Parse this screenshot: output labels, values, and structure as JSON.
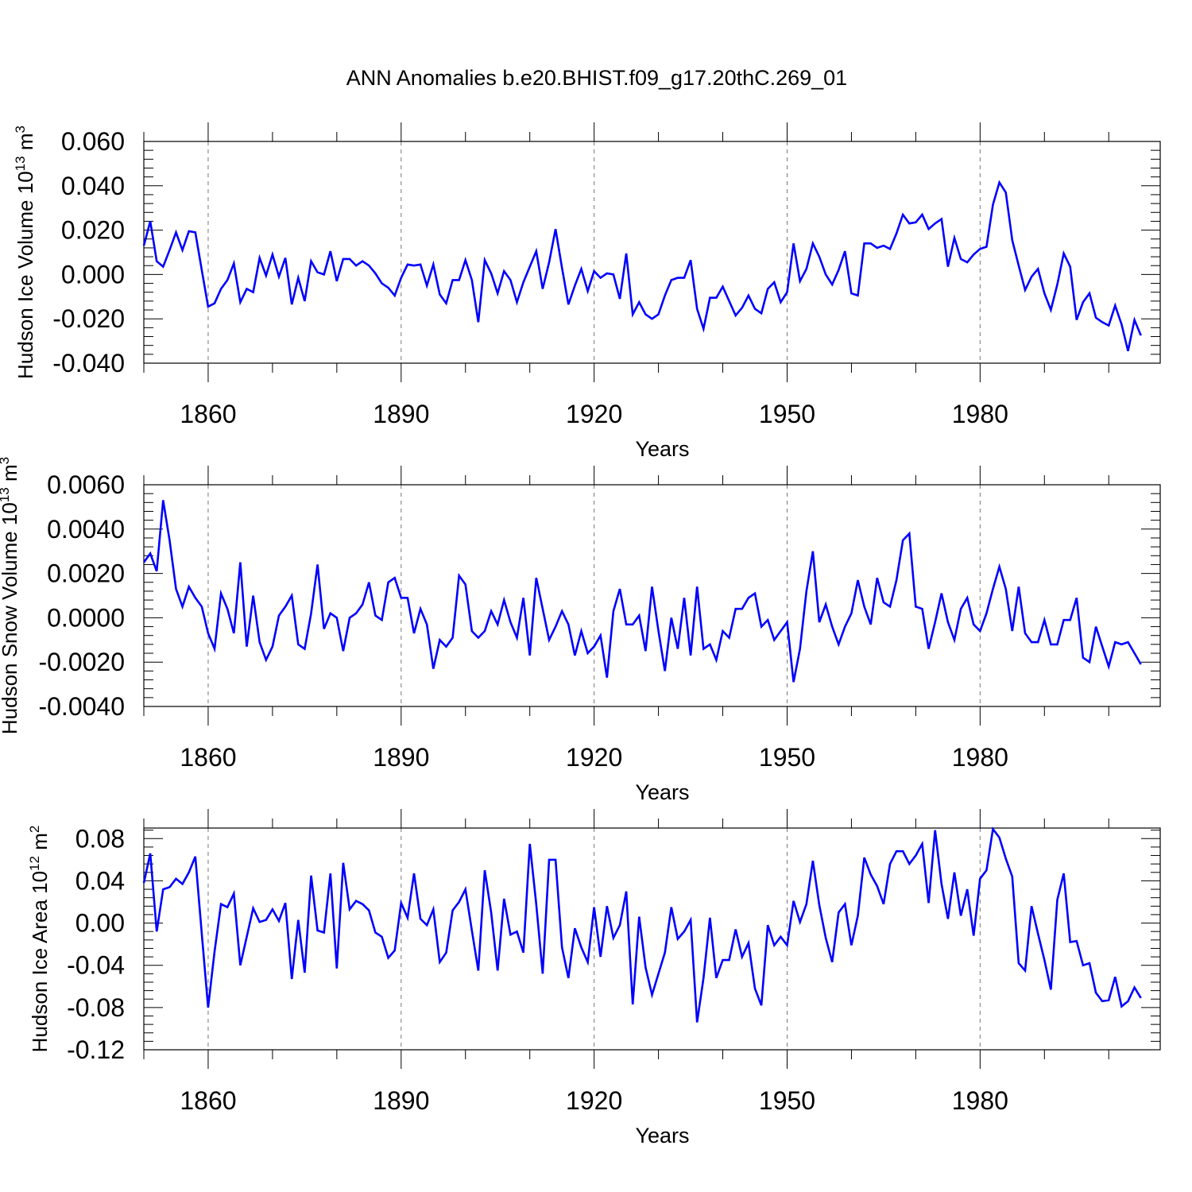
{
  "figure_title": "ANN Anomalies b.e20.BHIST.f09_g17.20thC.269_01",
  "colors": {
    "series": "#0000ff",
    "axis": "#000000",
    "refline": "#777777"
  },
  "chart_data": [
    {
      "type": "line",
      "title": "ANN Anomalies b.e20.BHIST.f09_g17.20thC.269_01",
      "xlabel": "Years",
      "ylabel": {
        "text": "Hudson Ice Volume 10",
        "sup": "13",
        "unit": " m",
        "unit_sup": "3"
      },
      "xlim": [
        1850,
        2008
      ],
      "ylim": [
        -0.04,
        0.06
      ],
      "x_ticks": [
        1860,
        1890,
        1920,
        1950,
        1980
      ],
      "y_ticks": [
        "-0.040",
        "-0.020",
        "0.000",
        "0.020",
        "0.040",
        "0.060"
      ],
      "x_start": 1850,
      "series": [
        {
          "name": "Hudson Ice Volume",
          "values": [
            0.013,
            0.024,
            0.006,
            0.0035,
            0.011,
            0.019,
            0.011,
            0.0195,
            0.019,
            0.002,
            -0.0145,
            -0.013,
            -0.0065,
            -0.0025,
            0.005,
            -0.0125,
            -0.0065,
            -0.008,
            0.0075,
            -0.0005,
            0.009,
            -0.001,
            0.0075,
            -0.0135,
            -0.0015,
            -0.012,
            0.006,
            0.001,
            0.0,
            0.0105,
            -0.003,
            0.007,
            0.007,
            0.004,
            0.006,
            0.004,
            0.0005,
            -0.004,
            -0.006,
            -0.0095,
            -0.0015,
            0.0045,
            0.004,
            0.0045,
            -0.005,
            0.0045,
            -0.009,
            -0.013,
            -0.0025,
            -0.0025,
            0.0065,
            -0.0025,
            -0.0215,
            0.0065,
            0.0005,
            -0.0085,
            0.0015,
            -0.0025,
            -0.0125,
            -0.0035,
            0.0035,
            0.0105,
            -0.0065,
            0.0055,
            0.0205,
            0.003,
            -0.0135,
            -0.005,
            0.0025,
            -0.0075,
            0.0015,
            -0.0015,
            0.0005,
            0.0,
            -0.011,
            0.0095,
            -0.018,
            -0.0125,
            -0.018,
            -0.02,
            -0.018,
            -0.0095,
            -0.0025,
            -0.0015,
            -0.0015,
            0.0065,
            -0.0155,
            -0.0245,
            -0.0105,
            -0.0105,
            -0.0055,
            -0.012,
            -0.0185,
            -0.015,
            -0.0095,
            -0.0155,
            -0.0175,
            -0.0065,
            -0.0035,
            -0.0125,
            -0.008,
            0.014,
            -0.003,
            0.0025,
            0.014,
            0.008,
            0.0,
            -0.0045,
            0.002,
            0.0105,
            -0.0085,
            -0.0095,
            0.014,
            0.014,
            0.012,
            0.013,
            0.0115,
            0.0185,
            0.027,
            0.023,
            0.0235,
            0.027,
            0.0205,
            0.023,
            0.025,
            0.0035,
            0.0165,
            0.007,
            0.0055,
            0.009,
            0.0115,
            0.0125,
            0.0315,
            0.0415,
            0.037,
            0.0155,
            0.004,
            -0.007,
            -0.001,
            0.0025,
            -0.0085,
            -0.016,
            -0.0045,
            0.0095,
            0.0035,
            -0.0205,
            -0.0125,
            -0.0085,
            -0.0195,
            -0.0215,
            -0.023,
            -0.014,
            -0.0225,
            -0.0345,
            -0.0205,
            -0.0275
          ]
        }
      ]
    },
    {
      "type": "line",
      "xlabel": "Years",
      "ylabel": {
        "text": "Hudson Snow Volume 10",
        "sup": "13",
        "unit": " m",
        "unit_sup": "3"
      },
      "xlim": [
        1850,
        2008
      ],
      "ylim": [
        -0.004,
        0.006
      ],
      "x_ticks": [
        1860,
        1890,
        1920,
        1950,
        1980
      ],
      "y_ticks": [
        "-0.0040",
        "-0.0020",
        "0.0000",
        "0.0020",
        "0.0040",
        "0.0060"
      ],
      "x_start": 1850,
      "series": [
        {
          "name": "Hudson Snow Volume",
          "values": [
            0.0025,
            0.0029,
            0.0021,
            0.0053,
            0.0035,
            0.0013,
            0.0005,
            0.0014,
            0.0009,
            0.0005,
            -0.0007,
            -0.0014,
            0.0011,
            0.0004,
            -0.0007,
            0.0025,
            -0.0013,
            0.001,
            -0.0011,
            -0.0019,
            -0.0013,
            0.0001,
            0.0005,
            0.001,
            -0.0012,
            -0.0014,
            0.0002,
            0.0024,
            -0.0005,
            0.0002,
            0.0,
            -0.0015,
            0.0,
            0.0002,
            0.0006,
            0.0016,
            0.0001,
            -0.0001,
            0.0016,
            0.0018,
            0.0009,
            0.0009,
            -0.0007,
            0.0004,
            -0.0003,
            -0.0023,
            -0.001,
            -0.0013,
            -0.0009,
            0.0019,
            0.0015,
            -0.0006,
            -0.0009,
            -0.0006,
            0.0003,
            -0.0003,
            0.0008,
            -0.0002,
            -0.0009,
            0.0009,
            -0.0017,
            0.0018,
            0.0004,
            -0.001,
            -0.0004,
            0.0003,
            -0.0003,
            -0.0017,
            -0.0006,
            -0.0016,
            -0.0013,
            -0.0008,
            -0.0027,
            0.0003,
            0.0013,
            -0.0003,
            -0.0003,
            0.0001,
            -0.0015,
            0.0014,
            -0.0006,
            -0.0024,
            0.0,
            -0.0014,
            0.0009,
            -0.0017,
            0.0014,
            -0.0014,
            -0.0012,
            -0.0019,
            -0.0006,
            -0.0009,
            0.0004,
            0.0004,
            0.0009,
            0.0011,
            -0.0004,
            -0.0001,
            -0.001,
            -0.0006,
            -0.0002,
            -0.0029,
            -0.0014,
            0.0012,
            0.003,
            -0.0002,
            0.0006,
            -0.0004,
            -0.0012,
            -0.0004,
            0.0002,
            0.0017,
            0.0005,
            -0.0003,
            0.0018,
            0.0007,
            0.0005,
            0.0017,
            0.0035,
            0.0038,
            0.0005,
            0.0004,
            -0.0014,
            -0.0002,
            0.0011,
            -0.0002,
            -0.001,
            0.0004,
            0.0009,
            -0.0003,
            -0.0006,
            0.0002,
            0.0013,
            0.0023,
            0.0013,
            -0.0006,
            0.0014,
            -0.0007,
            -0.0011,
            -0.0011,
            -0.0001,
            -0.0012,
            -0.0012,
            -0.0001,
            -0.0001,
            0.0009,
            -0.0018,
            -0.002,
            -0.0004,
            -0.0013,
            -0.0022,
            -0.0011,
            -0.0012,
            -0.0011,
            -0.0016,
            -0.0021
          ]
        }
      ]
    },
    {
      "type": "line",
      "xlabel": "Years",
      "ylabel": {
        "text": "Hudson Ice Area 10",
        "sup": "12",
        "unit": " m",
        "unit_sup": "2"
      },
      "xlim": [
        1850,
        2008
      ],
      "ylim": [
        -0.12,
        0.09
      ],
      "x_ticks": [
        1860,
        1890,
        1920,
        1950,
        1980
      ],
      "y_ticks": [
        "-0.12",
        "-0.08",
        "-0.04",
        "0.00",
        "0.04",
        "0.08"
      ],
      "x_start": 1850,
      "series": [
        {
          "name": "Hudson Ice Area",
          "values": [
            0.038,
            0.066,
            -0.008,
            0.032,
            0.034,
            0.042,
            0.037,
            0.048,
            0.063,
            -0.01,
            -0.08,
            -0.027,
            0.018,
            0.015,
            0.028,
            -0.04,
            -0.013,
            0.014,
            0.001,
            0.003,
            0.013,
            0.002,
            0.019,
            -0.053,
            0.003,
            -0.047,
            0.045,
            -0.007,
            -0.009,
            0.047,
            -0.043,
            0.057,
            0.013,
            0.021,
            0.018,
            0.012,
            -0.009,
            -0.013,
            -0.033,
            -0.026,
            0.019,
            0.005,
            0.047,
            0.004,
            -0.002,
            0.013,
            -0.037,
            -0.028,
            0.012,
            0.02,
            0.032,
            -0.007,
            -0.045,
            0.05,
            0.01,
            -0.045,
            0.023,
            -0.011,
            -0.008,
            -0.028,
            0.075,
            0.018,
            -0.048,
            0.06,
            0.06,
            -0.023,
            -0.052,
            -0.005,
            -0.023,
            -0.037,
            0.015,
            -0.032,
            0.016,
            -0.014,
            -0.002,
            0.03,
            -0.077,
            0.006,
            -0.042,
            -0.068,
            -0.048,
            -0.028,
            0.015,
            -0.015,
            -0.008,
            0.003,
            -0.094,
            -0.052,
            0.005,
            -0.052,
            -0.035,
            -0.035,
            -0.006,
            -0.032,
            -0.019,
            -0.062,
            -0.078,
            -0.002,
            -0.021,
            -0.013,
            -0.021,
            0.021,
            0.001,
            0.018,
            0.059,
            0.017,
            -0.014,
            -0.037,
            0.01,
            0.018,
            -0.021,
            0.007,
            0.062,
            0.046,
            0.035,
            0.018,
            0.056,
            0.068,
            0.068,
            0.056,
            0.064,
            0.075,
            0.019,
            0.088,
            0.037,
            0.004,
            0.048,
            0.007,
            0.032,
            -0.012,
            0.042,
            0.05,
            0.089,
            0.081,
            0.061,
            0.044,
            -0.038,
            -0.045,
            0.016,
            -0.01,
            -0.035,
            -0.063,
            0.022,
            0.047,
            -0.018,
            -0.017,
            -0.04,
            -0.038,
            -0.066,
            -0.074,
            -0.073,
            -0.051,
            -0.079,
            -0.074,
            -0.061,
            -0.071
          ]
        }
      ]
    }
  ]
}
